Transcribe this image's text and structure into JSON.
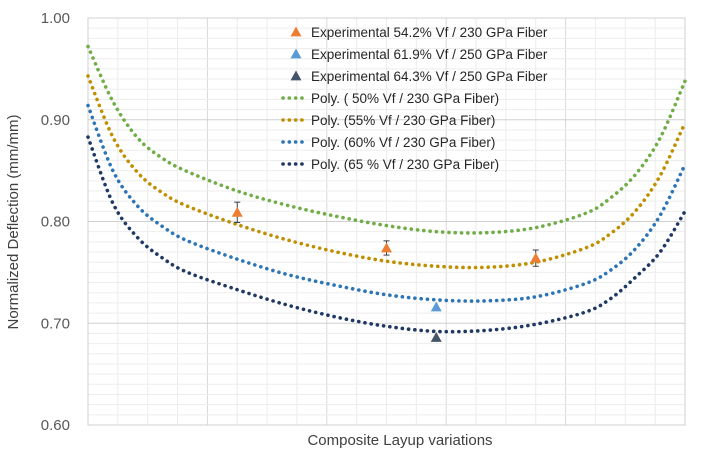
{
  "chart_data": {
    "type": "scatter",
    "title": "",
    "xlabel": "Composite Layup variations",
    "ylabel": "Normalized Deflection (mm/mm)",
    "ylim": [
      0.6,
      1.0
    ],
    "xlim": [
      0,
      12
    ],
    "yticks": [
      "0.60",
      "0.70",
      "0.80",
      "0.90",
      "1.00"
    ],
    "grid": true,
    "legend_position": "top-center",
    "series": [
      {
        "name": "Experimental 54.2% Vf / 230 GPa Fiber",
        "kind": "marker",
        "color": "#ed7d31",
        "points": [
          {
            "x": 3,
            "y": 0.809,
            "err": 0.01
          },
          {
            "x": 6,
            "y": 0.774,
            "err": 0.007
          },
          {
            "x": 9,
            "y": 0.764,
            "err": 0.008
          }
        ]
      },
      {
        "name": "Experimental 61.9% Vf / 250 GPa Fiber",
        "kind": "marker",
        "color": "#5b9bd5",
        "points": [
          {
            "x": 7,
            "y": 0.716
          }
        ]
      },
      {
        "name": "Experimental 64.3% Vf / 250 GPa Fiber",
        "kind": "marker",
        "color": "#44546a",
        "points": [
          {
            "x": 7,
            "y": 0.686
          }
        ]
      },
      {
        "name": "Poly. ( 50% Vf / 230 GPa Fiber)",
        "kind": "trend",
        "color": "#70ad47",
        "points": [
          {
            "x": 0,
            "y": 0.972
          },
          {
            "x": 0.5,
            "y": 0.918
          },
          {
            "x": 1,
            "y": 0.882
          },
          {
            "x": 1.5,
            "y": 0.862
          },
          {
            "x": 2,
            "y": 0.849
          },
          {
            "x": 3,
            "y": 0.83
          },
          {
            "x": 4,
            "y": 0.816
          },
          {
            "x": 5,
            "y": 0.805
          },
          {
            "x": 6,
            "y": 0.796
          },
          {
            "x": 7,
            "y": 0.79
          },
          {
            "x": 8,
            "y": 0.789
          },
          {
            "x": 9,
            "y": 0.794
          },
          {
            "x": 10,
            "y": 0.808
          },
          {
            "x": 10.5,
            "y": 0.823
          },
          {
            "x": 11,
            "y": 0.846
          },
          {
            "x": 11.5,
            "y": 0.882
          },
          {
            "x": 12,
            "y": 0.938
          }
        ]
      },
      {
        "name": "Poly. (55% Vf / 230 GPa Fiber)",
        "kind": "trend",
        "color": "#bf8f00",
        "points": [
          {
            "x": 0,
            "y": 0.943
          },
          {
            "x": 0.5,
            "y": 0.883
          },
          {
            "x": 1,
            "y": 0.848
          },
          {
            "x": 1.5,
            "y": 0.828
          },
          {
            "x": 2,
            "y": 0.815
          },
          {
            "x": 3,
            "y": 0.797
          },
          {
            "x": 4,
            "y": 0.782
          },
          {
            "x": 5,
            "y": 0.77
          },
          {
            "x": 6,
            "y": 0.761
          },
          {
            "x": 7,
            "y": 0.756
          },
          {
            "x": 8,
            "y": 0.755
          },
          {
            "x": 9,
            "y": 0.76
          },
          {
            "x": 10,
            "y": 0.774
          },
          {
            "x": 10.5,
            "y": 0.788
          },
          {
            "x": 11,
            "y": 0.81
          },
          {
            "x": 11.5,
            "y": 0.845
          },
          {
            "x": 12,
            "y": 0.897
          }
        ]
      },
      {
        "name": "Poly. (60% Vf / 230 GPa Fiber)",
        "kind": "trend",
        "color": "#2e75b6",
        "points": [
          {
            "x": 0,
            "y": 0.914
          },
          {
            "x": 0.5,
            "y": 0.85
          },
          {
            "x": 1,
            "y": 0.815
          },
          {
            "x": 1.5,
            "y": 0.795
          },
          {
            "x": 2,
            "y": 0.781
          },
          {
            "x": 3,
            "y": 0.763
          },
          {
            "x": 4,
            "y": 0.748
          },
          {
            "x": 5,
            "y": 0.737
          },
          {
            "x": 6,
            "y": 0.728
          },
          {
            "x": 7,
            "y": 0.723
          },
          {
            "x": 8,
            "y": 0.722
          },
          {
            "x": 9,
            "y": 0.726
          },
          {
            "x": 10,
            "y": 0.739
          },
          {
            "x": 10.5,
            "y": 0.752
          },
          {
            "x": 11,
            "y": 0.773
          },
          {
            "x": 11.5,
            "y": 0.806
          },
          {
            "x": 12,
            "y": 0.856
          }
        ]
      },
      {
        "name": "Poly. (65 % Vf / 230 GPa Fiber)",
        "kind": "trend",
        "color": "#1f3864",
        "points": [
          {
            "x": 0,
            "y": 0.883
          },
          {
            "x": 0.5,
            "y": 0.818
          },
          {
            "x": 1,
            "y": 0.784
          },
          {
            "x": 1.5,
            "y": 0.764
          },
          {
            "x": 2,
            "y": 0.75
          },
          {
            "x": 3,
            "y": 0.733
          },
          {
            "x": 4,
            "y": 0.718
          },
          {
            "x": 5,
            "y": 0.706
          },
          {
            "x": 6,
            "y": 0.697
          },
          {
            "x": 7,
            "y": 0.692
          },
          {
            "x": 8,
            "y": 0.693
          },
          {
            "x": 9,
            "y": 0.699
          },
          {
            "x": 10,
            "y": 0.711
          },
          {
            "x": 10.5,
            "y": 0.724
          },
          {
            "x": 11,
            "y": 0.745
          },
          {
            "x": 11.5,
            "y": 0.77
          },
          {
            "x": 12,
            "y": 0.81
          }
        ]
      }
    ]
  }
}
